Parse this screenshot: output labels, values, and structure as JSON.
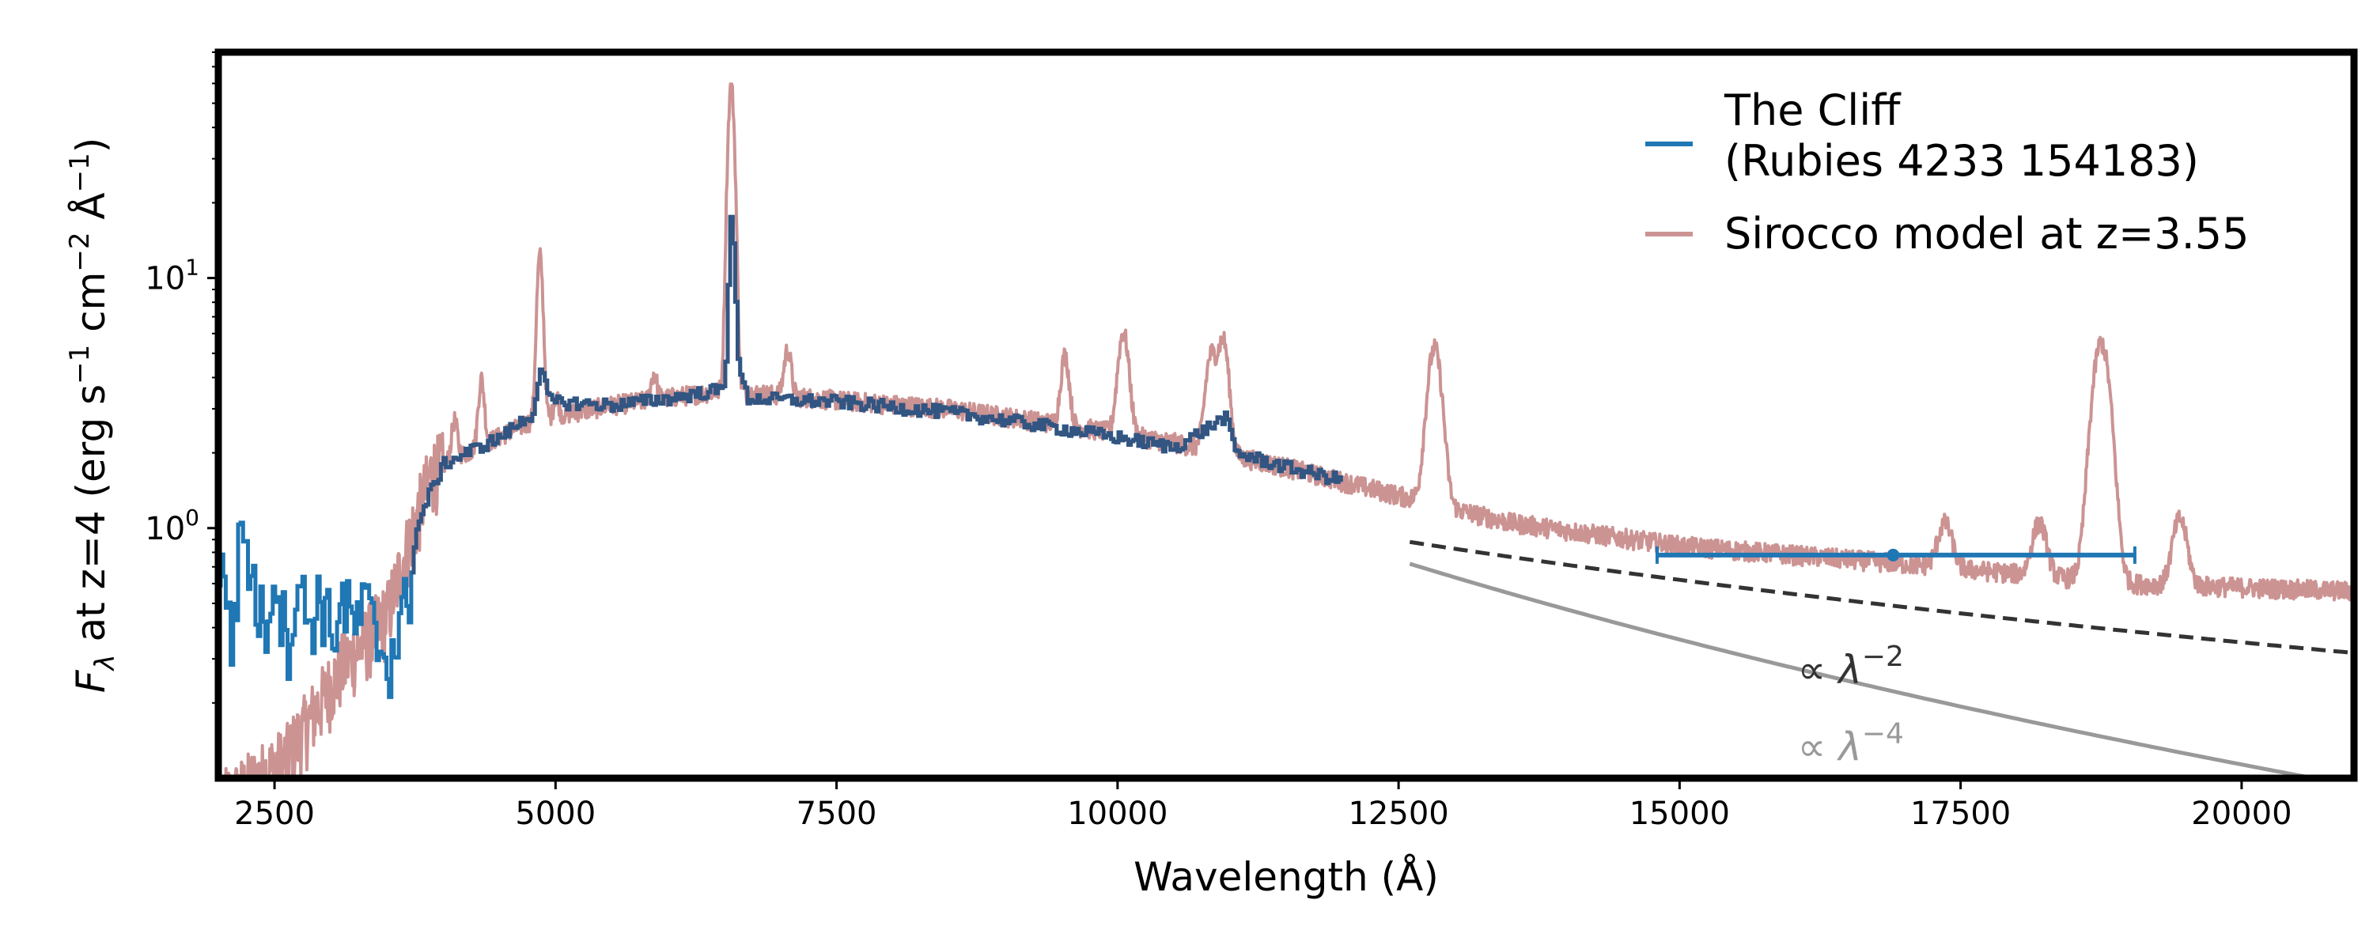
{
  "chart_data": {
    "type": "line",
    "xscale": "linear",
    "yscale": "log",
    "xlim": [
      2000,
      21000
    ],
    "ylim": [
      0.1,
      80
    ],
    "xlabel": "Wavelength (Å)",
    "ylabel": {
      "symbol": "F",
      "subscript": "λ",
      "text": " at z=4 (erg s",
      "exp1": "−1",
      "mid": " cm",
      "exp2": "−2",
      "end": " Å",
      "exp3": "−1",
      "close": ")"
    },
    "xticks": [
      2500,
      5000,
      7500,
      10000,
      12500,
      15000,
      17500,
      20000
    ],
    "yticks": [
      {
        "value": 1,
        "base": "10",
        "exp": "0"
      },
      {
        "value": 10,
        "base": "10",
        "exp": "1"
      }
    ],
    "colors": {
      "cliff": "#1f77b4",
      "cliff_overlap": "#3a4a72",
      "model": "#cc9393",
      "powerlaw2": "#333333",
      "powerlaw4": "#999999",
      "frame": "#000000"
    },
    "legend": {
      "location": "top-right",
      "entries": [
        {
          "line1": "The Cliff",
          "line2": "(Rubies 4233 154183)",
          "color": "#1f77b4"
        },
        {
          "line1": "Sirocco model at z=3.55",
          "line2": "",
          "color": "#cc9393"
        }
      ]
    },
    "annotations": [
      {
        "label": "∝ λ",
        "exp": "−2",
        "x": 16050,
        "y": 0.24,
        "color": "#333333"
      },
      {
        "label": "∝ λ",
        "exp": "−4",
        "x": 16050,
        "y": 0.118,
        "color": "#999999"
      }
    ],
    "continuum": [
      [
        2050,
        0.08
      ],
      [
        2600,
        0.12
      ],
      [
        3100,
        0.28
      ],
      [
        3500,
        0.45
      ],
      [
        3700,
        0.9
      ],
      [
        3900,
        1.7
      ],
      [
        4300,
        2.1
      ],
      [
        4800,
        2.7
      ],
      [
        5500,
        3.1
      ],
      [
        6500,
        3.55
      ],
      [
        7500,
        3.25
      ],
      [
        8500,
        3.0
      ],
      [
        9500,
        2.6
      ],
      [
        10500,
        2.2
      ],
      [
        11500,
        1.75
      ],
      [
        12500,
        1.35
      ],
      [
        13500,
        1.05
      ],
      [
        15000,
        0.85
      ],
      [
        17000,
        0.72
      ],
      [
        19000,
        0.6
      ],
      [
        21000,
        0.56
      ]
    ],
    "emission_lines": [
      {
        "center": 4101,
        "amp": 0.8,
        "width": 25
      },
      {
        "center": 4340,
        "amp": 1.8,
        "width": 25
      },
      {
        "center": 4861,
        "amp": 9.5,
        "width": 25
      },
      {
        "center": 5007,
        "amp": 0.6,
        "width": 20
      },
      {
        "center": 5876,
        "amp": 0.9,
        "width": 25
      },
      {
        "center": 6563,
        "amp": 55,
        "width": 28
      },
      {
        "center": 7065,
        "amp": 1.8,
        "width": 30
      },
      {
        "center": 9532,
        "amp": 2.3,
        "width": 35
      },
      {
        "center": 10052,
        "amp": 3.7,
        "width": 45
      },
      {
        "center": 10830,
        "amp": 2.8,
        "width": 45
      },
      {
        "center": 10941,
        "amp": 3.6,
        "width": 45
      },
      {
        "center": 12820,
        "amp": 4.0,
        "width": 60
      },
      {
        "center": 17360,
        "amp": 0.35,
        "width": 60
      },
      {
        "center": 18200,
        "amp": 0.4,
        "width": 60
      },
      {
        "center": 18751,
        "amp": 4.9,
        "width": 75
      },
      {
        "center": 19450,
        "amp": 0.5,
        "width": 60
      }
    ],
    "cliff_series": {
      "name": "The Cliff (Rubies 4233 154183)",
      "x_range": [
        2000,
        12000
      ],
      "points": [
        [
          2000,
          0.55
        ],
        [
          2050,
          0.75
        ],
        [
          2100,
          0.35
        ],
        [
          2150,
          0.55
        ],
        [
          2200,
          1.1
        ],
        [
          2300,
          0.6
        ],
        [
          2400,
          0.4
        ],
        [
          2500,
          0.7
        ],
        [
          2600,
          0.35
        ],
        [
          2700,
          0.6
        ],
        [
          2800,
          0.42
        ],
        [
          2900,
          0.55
        ],
        [
          3000,
          0.38
        ],
        [
          3100,
          0.52
        ],
        [
          3200,
          0.4
        ],
        [
          3300,
          0.5
        ],
        [
          3400,
          0.36
        ],
        [
          3500,
          0.3
        ],
        [
          3600,
          0.38
        ],
        [
          3700,
          0.6
        ],
        [
          3750,
          0.95
        ],
        [
          3850,
          1.3
        ],
        [
          4000,
          1.8
        ],
        [
          4200,
          2.0
        ],
        [
          4500,
          2.3
        ],
        [
          4800,
          2.9
        ],
        [
          4850,
          4.4
        ],
        [
          4950,
          3.2
        ],
        [
          5500,
          3.1
        ],
        [
          6000,
          3.3
        ],
        [
          6500,
          3.6
        ],
        [
          6560,
          22
        ],
        [
          6620,
          4.5
        ],
        [
          6700,
          3.3
        ],
        [
          7500,
          3.2
        ],
        [
          8500,
          2.9
        ],
        [
          9000,
          2.7
        ],
        [
          9500,
          2.5
        ],
        [
          10000,
          2.3
        ],
        [
          10500,
          2.1
        ],
        [
          10850,
          2.6
        ],
        [
          10950,
          2.8
        ],
        [
          11050,
          2.0
        ],
        [
          11500,
          1.75
        ],
        [
          12000,
          1.55
        ]
      ]
    },
    "photometry": {
      "x": 16900,
      "y": 0.78,
      "xerr": [
        14800,
        19050
      ]
    },
    "powerlaw_minus2": {
      "x": [
        12600,
        21000
      ],
      "y0": 0.88
    },
    "powerlaw_minus4": {
      "x": [
        12600,
        21000
      ],
      "y0": 0.72
    }
  }
}
